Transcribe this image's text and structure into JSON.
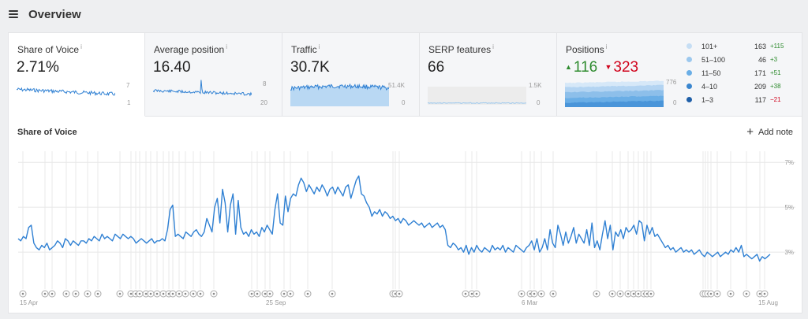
{
  "header": {
    "title": "Overview",
    "menu_icon": "hamburger-icon"
  },
  "cards": [
    {
      "label": "Share of Voice",
      "value": "2.71%",
      "axis_top": "7",
      "axis_bottom": "1"
    },
    {
      "label": "Average position",
      "value": "16.40",
      "axis_top": "8",
      "axis_bottom": "20"
    },
    {
      "label": "Traffic",
      "value": "30.7K",
      "axis_top": "51.4K",
      "axis_bottom": "0"
    },
    {
      "label": "SERP features",
      "value": "66",
      "axis_top": "1.5K",
      "axis_bottom": "0"
    },
    {
      "label": "Positions",
      "up": "116",
      "down": "323",
      "axis_top": "776",
      "axis_bottom": "0"
    }
  ],
  "legend": [
    {
      "name": "101+",
      "count": "163",
      "delta": "+115",
      "color": "#c6def4",
      "dir": "up"
    },
    {
      "name": "51–100",
      "count": "46",
      "delta": "+3",
      "color": "#9cc8ee",
      "dir": "up"
    },
    {
      "name": "11–50",
      "count": "171",
      "delta": "+51",
      "color": "#6aaee6",
      "dir": "up"
    },
    {
      "name": "4–10",
      "count": "209",
      "delta": "+38",
      "color": "#3a86cf",
      "dir": "up"
    },
    {
      "name": "1–3",
      "count": "117",
      "delta": "−21",
      "color": "#1f5fa8",
      "dir": "down"
    }
  ],
  "main": {
    "title": "Share of Voice",
    "add_note": "Add note"
  },
  "colors": {
    "line": "#2f80d3",
    "fill": "#b9d8f3",
    "up": "#2e8b2e",
    "down": "#d0021b"
  },
  "chart_data": {
    "type": "line",
    "title": "Share of Voice",
    "x_ticks": [
      "15 Apr",
      "25 Sep",
      "6 Mar",
      "15 Aug"
    ],
    "y_ticks": [
      "7%",
      "5%",
      "3%"
    ],
    "ylim": [
      1,
      7.5
    ],
    "series": [
      {
        "values": [
          3.6,
          3.5,
          3.7,
          3.6,
          4.1,
          4.2,
          3.4,
          3.2,
          3.1,
          3.3,
          3.2,
          3.4,
          3.1,
          3.2,
          3.3,
          3.5,
          3.4,
          3.2,
          3.6,
          3.5,
          3.3,
          3.5,
          3.4,
          3.3,
          3.5,
          3.5,
          3.4,
          3.6,
          3.5,
          3.7,
          3.6,
          3.5,
          3.8,
          3.6,
          3.7,
          3.6,
          3.5,
          3.8,
          3.7,
          3.6,
          3.8,
          3.7,
          3.6,
          3.7,
          3.6,
          3.4,
          3.5,
          3.6,
          3.5,
          3.4,
          3.5,
          3.6,
          3.4,
          3.5,
          3.5,
          3.6,
          3.5,
          4.0,
          4.9,
          5.1,
          3.7,
          3.8,
          3.7,
          3.6,
          3.9,
          3.8,
          3.7,
          3.9,
          4.0,
          3.8,
          3.7,
          3.9,
          4.5,
          4.2,
          3.9,
          5.0,
          5.4,
          4.3,
          5.8,
          5.2,
          3.9,
          5.1,
          5.6,
          3.8,
          5.3,
          4.1,
          3.8,
          3.9,
          3.7,
          4.0,
          3.8,
          3.9,
          3.7,
          4.1,
          3.9,
          4.2,
          4.0,
          3.8,
          4.9,
          5.6,
          4.3,
          4.2,
          5.5,
          4.8,
          5.4,
          5.6,
          5.5,
          6.0,
          6.3,
          6.1,
          5.7,
          6.0,
          5.8,
          5.6,
          5.9,
          5.7,
          6.0,
          5.8,
          5.5,
          5.8,
          5.9,
          5.6,
          5.9,
          5.7,
          5.5,
          5.9,
          6.0,
          5.4,
          5.8,
          6.2,
          6.4,
          5.6,
          5.5,
          5.2,
          5.0,
          4.6,
          4.8,
          4.7,
          4.9,
          4.6,
          4.8,
          4.7,
          4.5,
          4.6,
          4.4,
          4.5,
          4.3,
          4.5,
          4.4,
          4.2,
          4.3,
          4.4,
          4.3,
          4.2,
          4.3,
          4.1,
          4.2,
          4.3,
          4.1,
          4.2,
          4.3,
          4.1,
          4.2,
          4.0,
          3.3,
          3.2,
          3.4,
          3.3,
          3.1,
          3.2,
          3.0,
          3.3,
          2.9,
          3.2,
          3.0,
          3.3,
          3.1,
          3.0,
          3.2,
          3.1,
          3.0,
          3.3,
          3.1,
          3.2,
          3.1,
          3.3,
          3.0,
          3.2,
          3.1,
          3.0,
          3.3,
          3.2,
          3.1,
          3.0,
          3.2,
          3.3,
          3.5,
          3.1,
          3.6,
          3.0,
          3.2,
          3.6,
          3.1,
          4.0,
          3.4,
          3.2,
          4.2,
          3.8,
          3.3,
          3.9,
          3.4,
          3.7,
          4.1,
          3.4,
          3.8,
          3.6,
          3.4,
          4.0,
          3.3,
          4.3,
          3.2,
          3.5,
          3.1,
          3.8,
          4.4,
          3.6,
          4.2,
          3.1,
          3.9,
          3.7,
          4.0,
          3.6,
          4.1,
          3.9,
          4.0,
          4.2,
          3.8,
          4.4,
          4.3,
          3.5,
          4.2,
          3.8,
          4.1,
          3.7,
          3.8,
          3.6,
          3.4,
          3.2,
          3.3,
          3.1,
          3.2,
          3.0,
          3.1,
          3.2,
          3.0,
          3.1,
          3.0,
          3.1,
          2.9,
          3.0,
          3.1,
          2.9,
          2.8,
          3.0,
          2.9,
          2.8,
          2.9,
          3.0,
          2.8,
          2.9,
          3.0,
          2.9,
          3.1,
          3.0,
          3.2,
          3.0,
          3.3,
          2.8,
          2.9,
          2.8,
          2.7,
          2.8,
          2.9,
          2.6,
          2.8,
          2.7,
          2.8,
          2.9
        ]
      }
    ]
  }
}
